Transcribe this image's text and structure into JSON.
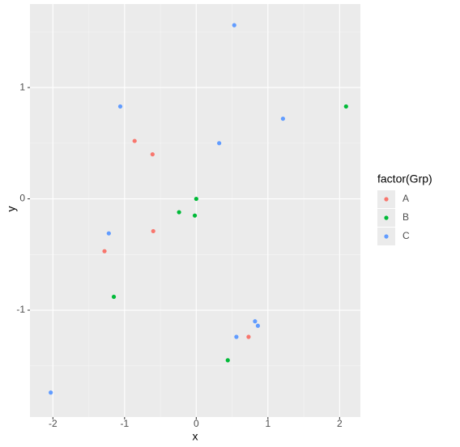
{
  "chart_data": {
    "type": "scatter",
    "x_label": "x",
    "y_label": "y",
    "legend_title": "factor(Grp)",
    "series": [
      {
        "name": "A",
        "color": "#F8766D",
        "x": [
          -0.86,
          -0.61,
          -0.6,
          -1.28,
          0.73
        ],
        "values": [
          0.52,
          0.4,
          -0.29,
          -0.47,
          -1.24
        ]
      },
      {
        "name": "B",
        "color": "#00BA38",
        "x": [
          2.09,
          0.0,
          -0.24,
          -0.02,
          -1.15,
          0.44
        ],
        "values": [
          0.83,
          0.0,
          -0.12,
          -0.15,
          -0.88,
          -1.45
        ]
      },
      {
        "name": "C",
        "color": "#619CFF",
        "x": [
          0.53,
          -1.06,
          1.21,
          0.32,
          -1.22,
          0.82,
          0.86,
          0.56,
          -2.03
        ],
        "values": [
          1.56,
          0.83,
          0.72,
          0.5,
          -0.31,
          -1.1,
          -1.14,
          -1.24,
          -1.74
        ]
      }
    ],
    "xlim": [
      -2.32,
      2.29
    ],
    "xticks": [
      -2,
      -1,
      0,
      1,
      2
    ],
    "ylim": [
      -1.96,
      1.75
    ],
    "yticks": [
      -1,
      0,
      1
    ],
    "grid": true,
    "legend_position": "right"
  }
}
